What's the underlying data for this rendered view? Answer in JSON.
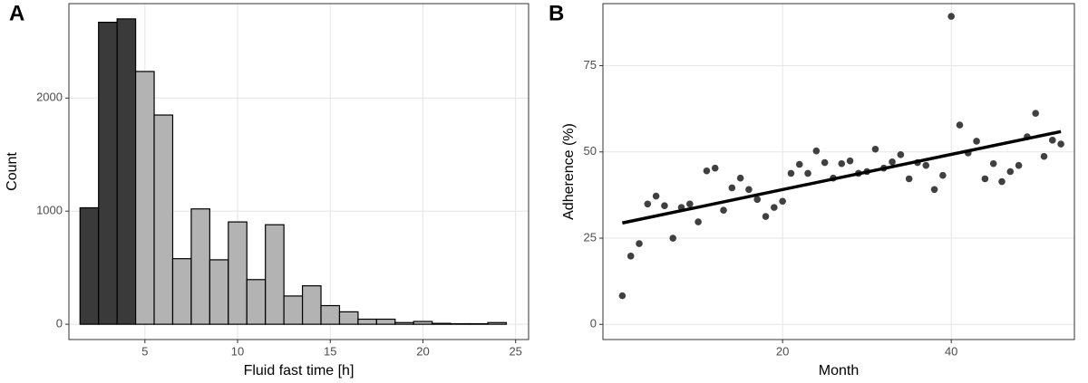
{
  "chart_data": [
    {
      "type": "histogram",
      "panel_label": "A",
      "xlabel": "Fluid fast time [h]",
      "ylabel": "Count",
      "bins": [
        1.5,
        2.5,
        3.5,
        4.5,
        5.5,
        6.5,
        7.5,
        8.5,
        9.5,
        10.5,
        11.5,
        12.5,
        13.5,
        14.5,
        15.5,
        16.5,
        17.5,
        18.5,
        19.5,
        20.5,
        21.5,
        22.5,
        23.5,
        24.5
      ],
      "values": [
        1030,
        2670,
        2700,
        2235,
        1850,
        580,
        1020,
        570,
        905,
        395,
        880,
        250,
        340,
        165,
        110,
        45,
        45,
        15,
        25,
        8,
        5,
        5,
        15
      ],
      "colors": [
        "#3a3a3a",
        "#3a3a3a",
        "#3a3a3a",
        "#b3b3b3",
        "#b3b3b3",
        "#b3b3b3",
        "#b3b3b3",
        "#b3b3b3",
        "#b3b3b3",
        "#b3b3b3",
        "#b3b3b3",
        "#b3b3b3",
        "#b3b3b3",
        "#b3b3b3",
        "#b3b3b3",
        "#b3b3b3",
        "#b3b3b3",
        "#b3b3b3",
        "#b3b3b3",
        "#b3b3b3",
        "#b3b3b3",
        "#b3b3b3",
        "#b3b3b3"
      ],
      "xlim": [
        0.9,
        25.7
      ],
      "ylim": [
        -135,
        2835
      ],
      "xticks": [
        5,
        10,
        15,
        20,
        25
      ],
      "yticks": [
        0,
        1000,
        2000
      ],
      "grid": true
    },
    {
      "type": "scatter",
      "panel_label": "B",
      "xlabel": "Month",
      "ylabel": "Adherence (%)",
      "color": "#404040",
      "x": [
        1,
        2,
        3,
        4,
        5,
        6,
        7,
        8,
        9,
        10,
        11,
        12,
        13,
        14,
        15,
        16,
        17,
        18,
        19,
        20,
        21,
        22,
        23,
        24,
        25,
        26,
        27,
        28,
        29,
        30,
        31,
        32,
        33,
        34,
        35,
        36,
        37,
        38,
        39,
        40,
        41,
        42,
        43,
        44,
        45,
        46,
        47,
        48,
        49,
        50,
        51,
        52,
        53
      ],
      "values": [
        8.3,
        19.8,
        23.4,
        34.9,
        37.2,
        34.4,
        25,
        33.9,
        34.9,
        29.7,
        44.5,
        45.3,
        33.1,
        39.6,
        42.4,
        39.1,
        36.2,
        31.3,
        33.9,
        35.7,
        43.8,
        46.4,
        43.8,
        50.3,
        46.9,
        42.4,
        46.6,
        47.4,
        43.8,
        44.3,
        50.8,
        45.3,
        47.1,
        49.2,
        42.2,
        46.9,
        46.1,
        39.1,
        43.2,
        89.3,
        57.8,
        49.7,
        53.1,
        42.2,
        46.6,
        41.4,
        44.3,
        46.1,
        54.4,
        61.2,
        48.7,
        53.4,
        52.3
      ],
      "fit_line": {
        "x": [
          1,
          53
        ],
        "values": [
          29.4,
          55.9
        ],
        "color": "#000000"
      },
      "xlim": [
        -1.3,
        54.6
      ],
      "ylim": [
        -4.4,
        93
      ],
      "xticks": [
        20,
        40
      ],
      "yticks": [
        0,
        25,
        50,
        75
      ],
      "grid": true
    }
  ]
}
